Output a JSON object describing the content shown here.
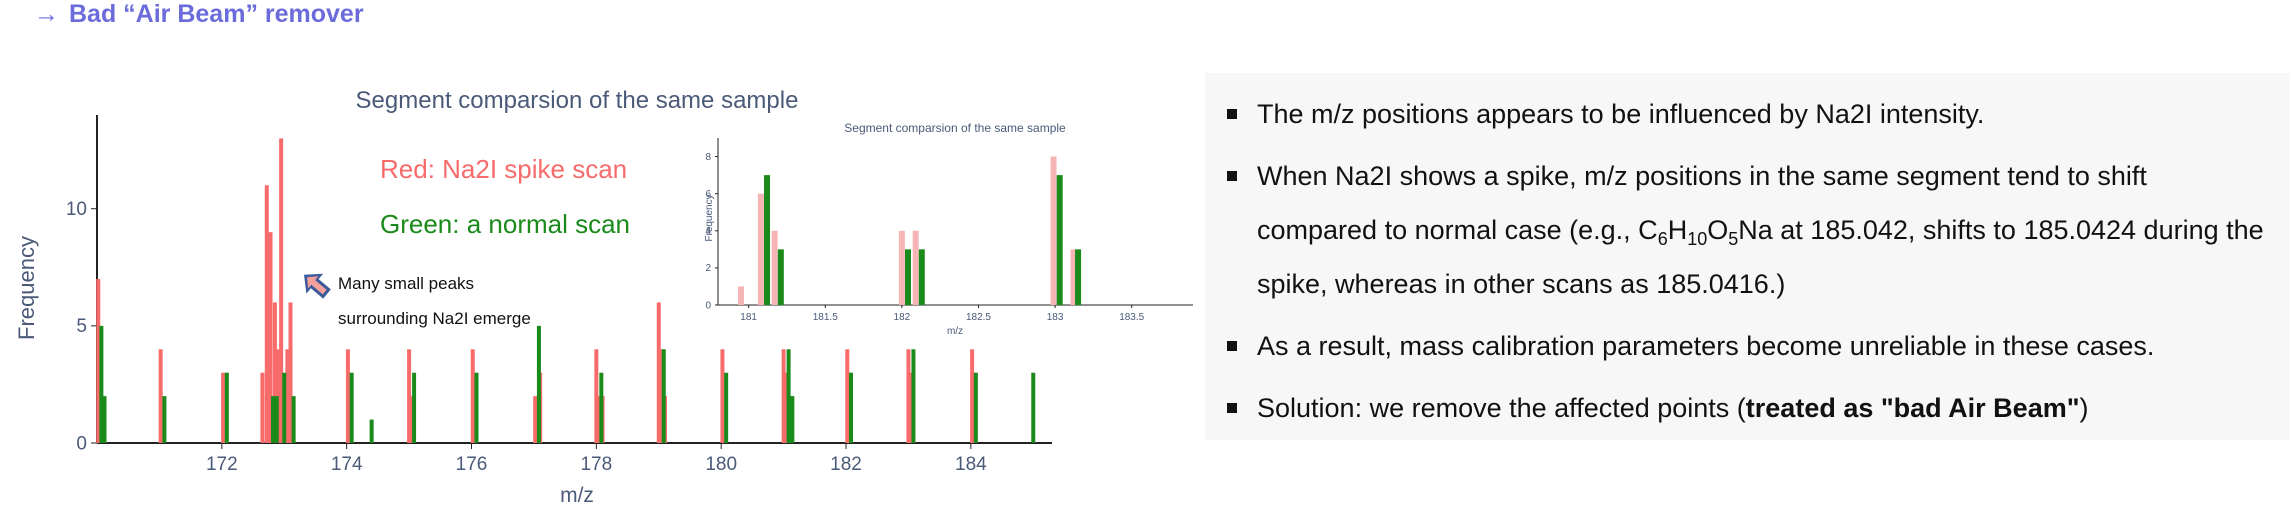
{
  "heading": {
    "arrow": "→",
    "text": "Bad “Air Beam” remover"
  },
  "colors": {
    "spike": "#f76b6b",
    "spike_light": "#f6b5b5",
    "normal": "#1a8a1a",
    "axis_text": "#4a5a78",
    "heading": "#6b6bdc"
  },
  "annotations": {
    "red_label": "Red: Na2I spike scan",
    "green_label": "Green: a normal scan",
    "note_line1": "Many small peaks",
    "note_line2": "surrounding Na2I emerge",
    "note_icon": "arrow-icon"
  },
  "chart_data": [
    {
      "type": "bar",
      "title": "Segment comparsion of the same sample",
      "xlabel": "m/z",
      "ylabel": "Frequency",
      "xlim": [
        170.0,
        185.3
      ],
      "ylim": [
        0,
        14
      ],
      "xticks": [
        172,
        174,
        176,
        178,
        180,
        182,
        184
      ],
      "yticks": [
        0,
        5,
        10
      ],
      "grid": false,
      "series": [
        {
          "name": "Red: Na2I spike scan",
          "color": "#f76b6b",
          "x": [
            170.02,
            170.05,
            171.02,
            171.05,
            172.02,
            172.05,
            172.65,
            172.72,
            172.78,
            172.85,
            172.9,
            172.95,
            173.05,
            173.1,
            174.02,
            174.05,
            175.0,
            175.04,
            176.02,
            176.05,
            177.02,
            177.1,
            178.0,
            178.04,
            178.1,
            179.0,
            179.04,
            179.1,
            180.02,
            180.05,
            181.0,
            181.04,
            181.1,
            182.02,
            182.06,
            183.0,
            183.04,
            184.02,
            184.06
          ],
          "values": [
            7,
            3,
            4,
            2,
            3,
            2,
            3,
            11,
            9,
            6,
            4,
            13,
            4,
            6,
            4,
            2,
            4,
            2,
            4,
            2,
            2,
            3,
            4,
            2,
            2,
            6,
            4,
            2,
            4,
            2,
            4,
            3,
            2,
            4,
            3,
            4,
            3,
            4,
            3
          ]
        },
        {
          "name": "Green: a normal scan",
          "color": "#1a8a1a",
          "x": [
            170.07,
            170.12,
            171.08,
            172.08,
            172.82,
            172.88,
            173.0,
            173.15,
            174.08,
            174.4,
            175.08,
            176.08,
            177.08,
            178.08,
            179.08,
            180.08,
            181.08,
            181.14,
            182.08,
            183.08,
            184.08,
            185.0
          ],
          "values": [
            5,
            2,
            2,
            3,
            2,
            2,
            3,
            2,
            3,
            1,
            3,
            3,
            5,
            3,
            4,
            3,
            4,
            2,
            3,
            4,
            3,
            3
          ]
        }
      ]
    },
    {
      "type": "bar",
      "title": "Segment comparsion of the same sample",
      "xlabel": "m/z",
      "ylabel": "Frequency",
      "xlim": [
        180.8,
        183.9
      ],
      "ylim": [
        0,
        9
      ],
      "xticks": [
        181,
        181.5,
        182,
        182.5,
        183,
        183.5
      ],
      "yticks": [
        0,
        2,
        4,
        6,
        8
      ],
      "grid": false,
      "series": [
        {
          "name": "Red: Na2I spike scan",
          "color": "#f6b5b5",
          "x": [
            180.95,
            181.08,
            181.17,
            182.0,
            182.09,
            182.99,
            183.12
          ],
          "values": [
            1,
            6,
            4,
            4,
            4,
            8,
            3
          ]
        },
        {
          "name": "Green: a normal scan",
          "color": "#1a8a1a",
          "x": [
            181.12,
            181.21,
            182.04,
            182.13,
            183.03,
            183.15
          ],
          "values": [
            7,
            3,
            3,
            3,
            7,
            3
          ]
        }
      ]
    }
  ],
  "bullets": [
    {
      "text": "The m/z positions appears to be influenced by Na2I intensity."
    },
    {
      "text_before": "When Na2I shows a spike, m/z positions in the same segment tend to shift compared to normal case (e.g., C",
      "s1": "6",
      "t2": "H",
      "s2": "10",
      "t3": "O",
      "s3": "5",
      "text_after": "Na at 185.042, shifts to 185.0424 during the spike, whereas in other scans as 185.0416.)"
    },
    {
      "text": "As a result, mass calibration parameters become unreliable in these cases."
    },
    {
      "text_before": "Solution: we remove the affected points (",
      "bold": "treated as \"bad Air Beam\"",
      "text_after": ")"
    }
  ]
}
